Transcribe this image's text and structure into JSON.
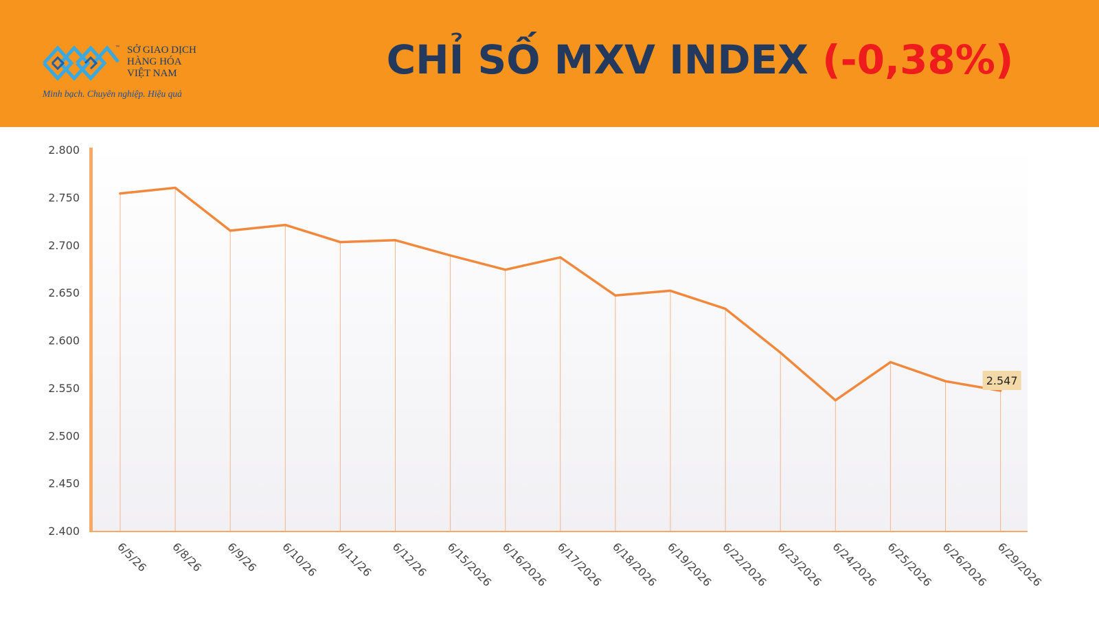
{
  "header": {
    "background_color": "#f7941d",
    "logo": {
      "icon": "vietnam-commodity-exchange-logo",
      "tm": "™",
      "line1": "SỞ GIAO DỊCH",
      "line2": "HÀNG HÓA",
      "line3": "VIỆT NAM",
      "slogan": "Minh bạch. Chuyên nghiệp. Hiệu quả"
    },
    "title": "CHỈ SỐ MXV INDEX",
    "change": "(-0,38%)",
    "title_color": "#23395d",
    "change_color": "#ee1c1c"
  },
  "chart_data": {
    "type": "line",
    "title": "",
    "xlabel": "",
    "ylabel": "",
    "categories": [
      "6/5/26",
      "6/8/26",
      "6/9/26",
      "6/10/26",
      "6/11/26",
      "6/12/26",
      "6/15/2026",
      "6/16/2026",
      "6/17/2026",
      "6/18/2026",
      "6/19/2026",
      "6/22/2026",
      "6/23/2026",
      "6/24/2026",
      "6/25/2026",
      "6/26/2026",
      "6/29/2026"
    ],
    "values": [
      2754,
      2760,
      2715,
      2721,
      2703,
      2705,
      2689,
      2674,
      2687,
      2647,
      2652,
      2633,
      2587,
      2537,
      2577,
      2557,
      2547
    ],
    "ylim": [
      2400,
      2800
    ],
    "yticks": [
      2400,
      2450,
      2500,
      2550,
      2600,
      2650,
      2700,
      2750,
      2800
    ],
    "ytick_labels": [
      "2.400",
      "2.450",
      "2.500",
      "2.550",
      "2.600",
      "2.650",
      "2.700",
      "2.750",
      "2.800"
    ],
    "last_value_label": "2.547",
    "line_color": "#f0883e",
    "drop_line_color": "#f6b48a",
    "label_bg_color": "#f3d9a8",
    "axis_color": "#f7a96b",
    "grid": false,
    "legend": "none"
  }
}
